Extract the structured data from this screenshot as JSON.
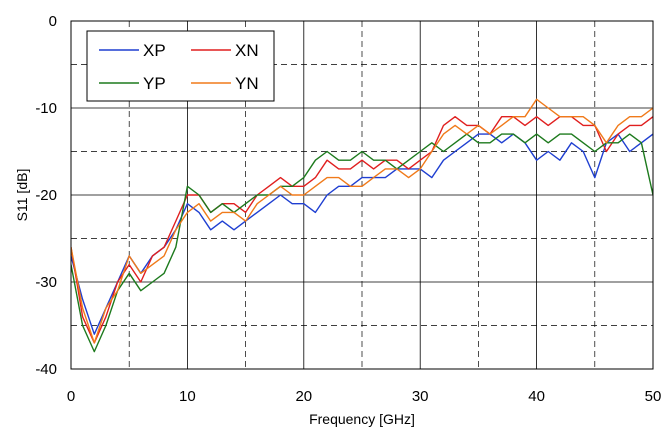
{
  "chart_data": {
    "type": "line",
    "xlabel": "Frequency [GHz]",
    "ylabel": "S11 [dB]",
    "xlim": [
      0,
      50
    ],
    "ylim": [
      -40,
      0
    ],
    "xticks": [
      0,
      10,
      20,
      30,
      40,
      50
    ],
    "yticks": [
      0,
      -10,
      -20,
      -30,
      -40
    ],
    "grid": {
      "solid_step": 10,
      "dashed_step": 5
    },
    "legend_position": "top-left",
    "legend_columns": 2,
    "series": [
      {
        "name": "XP",
        "color": "#1f3fd1",
        "x": [
          0,
          1,
          2,
          3,
          4,
          5,
          6,
          7,
          8,
          9,
          10,
          11,
          12,
          13,
          14,
          15,
          16,
          17,
          18,
          19,
          20,
          21,
          22,
          23,
          24,
          25,
          26,
          27,
          28,
          29,
          30,
          31,
          32,
          33,
          34,
          35,
          36,
          37,
          38,
          39,
          40,
          41,
          42,
          43,
          44,
          45,
          46,
          47,
          48,
          49,
          50
        ],
        "y": [
          -27,
          -32,
          -36,
          -33,
          -30,
          -27,
          -29,
          -27,
          -26,
          -24,
          -21,
          -22,
          -24,
          -23,
          -24,
          -23,
          -22,
          -21,
          -20,
          -21,
          -21,
          -22,
          -20,
          -19,
          -19,
          -18,
          -18,
          -18,
          -17,
          -17,
          -17,
          -18,
          -16,
          -15,
          -14,
          -13,
          -13,
          -14,
          -13,
          -14,
          -16,
          -15,
          -16,
          -14,
          -15,
          -18,
          -14,
          -13,
          -15,
          -14,
          -13
        ]
      },
      {
        "name": "XN",
        "color": "#e01f1f",
        "x": [
          0,
          1,
          2,
          3,
          4,
          5,
          6,
          7,
          8,
          9,
          10,
          11,
          12,
          13,
          14,
          15,
          16,
          17,
          18,
          19,
          20,
          21,
          22,
          23,
          24,
          25,
          26,
          27,
          28,
          29,
          30,
          31,
          32,
          33,
          34,
          35,
          36,
          37,
          38,
          39,
          40,
          41,
          42,
          43,
          44,
          45,
          46,
          47,
          48,
          49,
          50
        ],
        "y": [
          -26,
          -34,
          -37,
          -34,
          -30,
          -28,
          -30,
          -27,
          -26,
          -23,
          -20,
          -20,
          -22,
          -21,
          -21,
          -22,
          -20,
          -19,
          -18,
          -19,
          -19,
          -18,
          -16,
          -17,
          -17,
          -16,
          -17,
          -16,
          -16,
          -17,
          -16,
          -15,
          -12,
          -11,
          -12,
          -12,
          -13,
          -11,
          -11,
          -12,
          -11,
          -12,
          -11,
          -11,
          -12,
          -12,
          -15,
          -13,
          -12,
          -12,
          -11
        ]
      },
      {
        "name": "YP",
        "color": "#1d7a1d",
        "x": [
          0,
          1,
          2,
          3,
          4,
          5,
          6,
          7,
          8,
          9,
          10,
          11,
          12,
          13,
          14,
          15,
          16,
          17,
          18,
          19,
          20,
          21,
          22,
          23,
          24,
          25,
          26,
          27,
          28,
          29,
          30,
          31,
          32,
          33,
          34,
          35,
          36,
          37,
          38,
          39,
          40,
          41,
          42,
          43,
          44,
          45,
          46,
          47,
          48,
          49,
          50
        ],
        "y": [
          -28,
          -35,
          -38,
          -35,
          -31,
          -29,
          -31,
          -30,
          -29,
          -26,
          -19,
          -20,
          -22,
          -21,
          -22,
          -21,
          -20,
          -20,
          -19,
          -19,
          -18,
          -16,
          -15,
          -16,
          -16,
          -15,
          -16,
          -16,
          -17,
          -16,
          -15,
          -14,
          -15,
          -14,
          -13,
          -14,
          -14,
          -13,
          -13,
          -14,
          -13,
          -14,
          -13,
          -13,
          -14,
          -15,
          -14,
          -14,
          -13,
          -14,
          -20
        ]
      },
      {
        "name": "YN",
        "color": "#f07a1a",
        "x": [
          0,
          1,
          2,
          3,
          4,
          5,
          6,
          7,
          8,
          9,
          10,
          11,
          12,
          13,
          14,
          15,
          16,
          17,
          18,
          19,
          20,
          21,
          22,
          23,
          24,
          25,
          26,
          27,
          28,
          29,
          30,
          31,
          32,
          33,
          34,
          35,
          36,
          37,
          38,
          39,
          40,
          41,
          42,
          43,
          44,
          45,
          46,
          47,
          48,
          49,
          50
        ],
        "y": [
          -26,
          -33,
          -37,
          -33,
          -31,
          -27,
          -29,
          -28,
          -27,
          -24,
          -22,
          -21,
          -23,
          -22,
          -22,
          -23,
          -21,
          -20,
          -19,
          -20,
          -20,
          -19,
          -18,
          -18,
          -19,
          -19,
          -18,
          -17,
          -17,
          -18,
          -17,
          -15,
          -13,
          -12,
          -13,
          -12,
          -13,
          -12,
          -11,
          -11,
          -9,
          -10,
          -11,
          -11,
          -11,
          -12,
          -14,
          -12,
          -11,
          -11,
          -10
        ]
      }
    ]
  }
}
